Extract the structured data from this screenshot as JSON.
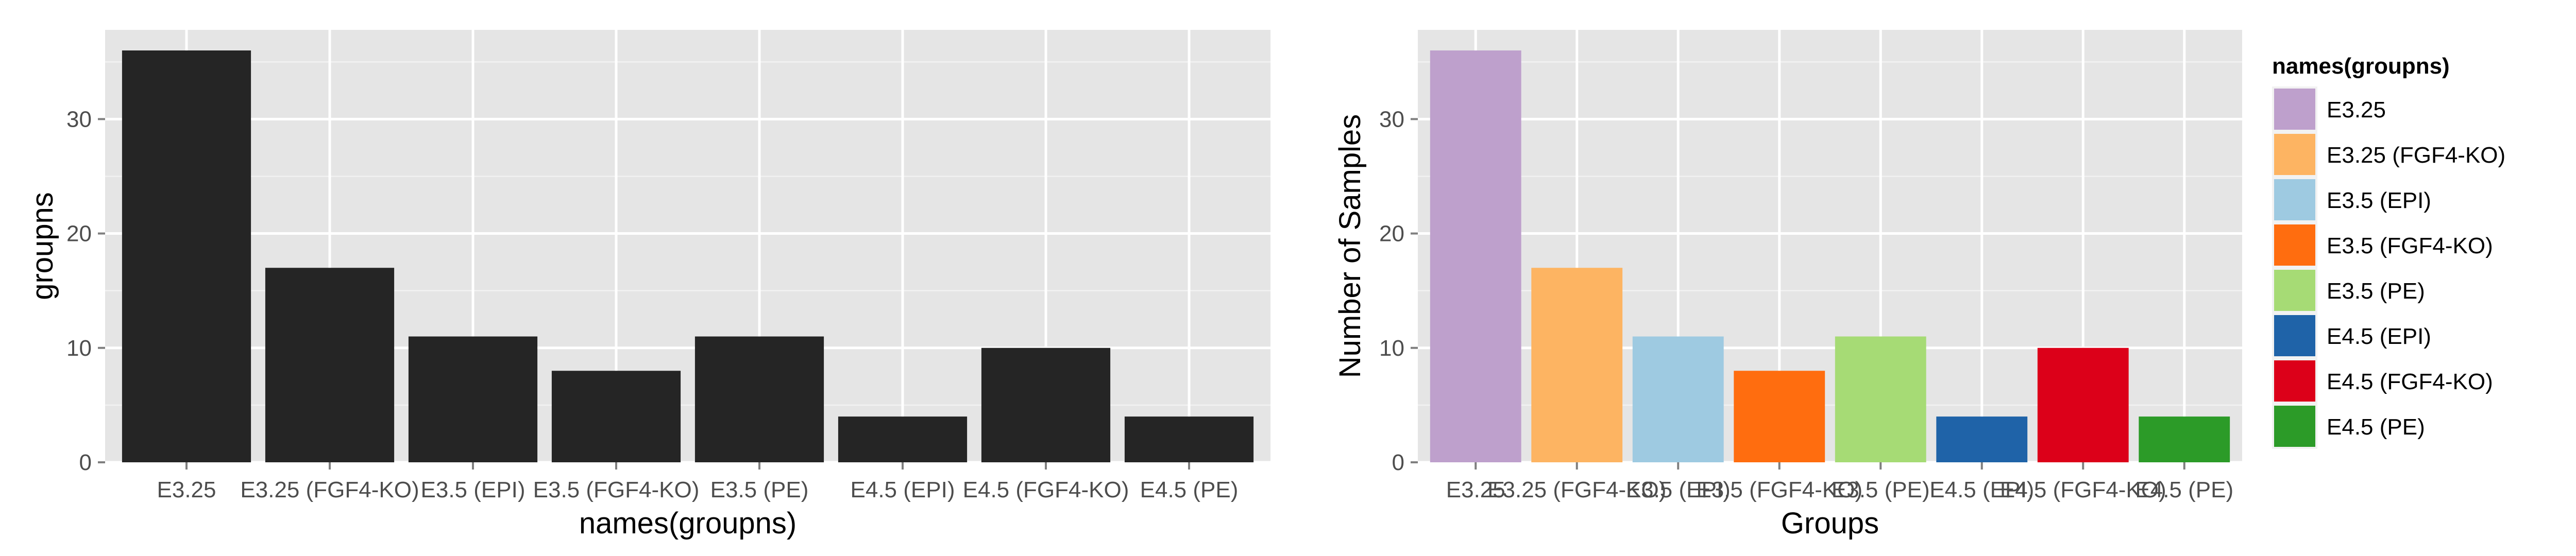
{
  "chart_data": [
    {
      "type": "bar",
      "title": "",
      "xlabel": "names(groupns)",
      "ylabel": "groupns",
      "categories": [
        "E3.25",
        "E3.25 (FGF4-KO)",
        "E3.5 (EPI)",
        "E3.5 (FGF4-KO)",
        "E3.5 (PE)",
        "E4.5 (EPI)",
        "E4.5 (FGF4-KO)",
        "E4.5 (PE)"
      ],
      "values": [
        36,
        17,
        11,
        8,
        11,
        4,
        10,
        4
      ],
      "ylim": [
        0,
        37.8
      ],
      "yticks": [
        0,
        10,
        20,
        30
      ],
      "grid": true,
      "bar_color": "#252525",
      "panel_color": "#e5e5e5"
    },
    {
      "type": "bar",
      "title": "",
      "xlabel": "Groups",
      "ylabel": "Number of Samples",
      "categories": [
        "E3.25",
        "E3.25 (FGF4-KO)",
        "E3.5 (EPI)",
        "E3.5 (FGF4-KO)",
        "E3.5 (PE)",
        "E4.5 (EPI)",
        "E4.5 (FGF4-KO)",
        "E4.5 (PE)"
      ],
      "values": [
        36,
        17,
        11,
        8,
        11,
        4,
        10,
        4
      ],
      "ylim": [
        0,
        37.8
      ],
      "yticks": [
        0,
        10,
        20,
        30
      ],
      "grid": true,
      "colors": [
        "#bea0cc",
        "#fdb462",
        "#9ecae1",
        "#ff6d0f",
        "#a6db75",
        "#1f63a8",
        "#dc0019",
        "#2c9b28"
      ],
      "panel_color": "#e5e5e5",
      "legend": {
        "title": "names(groupns)",
        "position": "right",
        "entries": [
          "E3.25",
          "E3.25 (FGF4-KO)",
          "E3.5 (EPI)",
          "E3.5 (FGF4-KO)",
          "E3.5 (PE)",
          "E4.5 (EPI)",
          "E4.5 (FGF4-KO)",
          "E4.5 (PE)"
        ]
      }
    }
  ]
}
